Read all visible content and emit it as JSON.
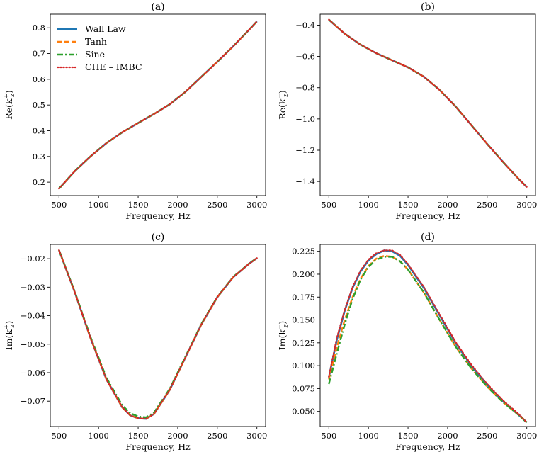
{
  "figure": {
    "legend_placement": "top-left"
  },
  "series_styles": [
    {
      "name": "Wall Law",
      "color": "#1f77b4",
      "dash": "solid"
    },
    {
      "name": "Tanh",
      "color": "#ff7f0e",
      "dash": "dashed"
    },
    {
      "name": "Sine",
      "color": "#2ca02c",
      "dash": "dashdot"
    },
    {
      "name": "CHE – IMBC",
      "color": "#d62728",
      "dash": "dotted"
    }
  ],
  "chart_data": [
    {
      "type": "line",
      "title": "(a)",
      "xlabel": "Frequency, Hz",
      "ylabel": "Re(k",
      "ylabel_sup": "+",
      "ylabel_sub": "z",
      "xlim": [
        390,
        3110
      ],
      "ylim": [
        0.148,
        0.853
      ],
      "xticks": [
        500,
        1000,
        1500,
        2000,
        2500,
        3000
      ],
      "yticks": [
        0.2,
        0.3,
        0.4,
        0.5,
        0.6,
        0.7,
        0.8
      ],
      "ytick_labels": [
        "0.2",
        "0.3",
        "0.4",
        "0.5",
        "0.6",
        "0.7",
        "0.8"
      ],
      "show_legend": true,
      "x": [
        500,
        700,
        900,
        1100,
        1300,
        1500,
        1700,
        1900,
        2100,
        2300,
        2500,
        2700,
        2900,
        3000
      ],
      "series": [
        {
          "name": "Wall Law",
          "values": [
            0.175,
            0.243,
            0.301,
            0.352,
            0.394,
            0.43,
            0.465,
            0.503,
            0.552,
            0.61,
            0.668,
            0.728,
            0.792,
            0.825
          ]
        },
        {
          "name": "Tanh",
          "values": [
            0.175,
            0.243,
            0.301,
            0.352,
            0.394,
            0.43,
            0.465,
            0.503,
            0.552,
            0.61,
            0.668,
            0.728,
            0.792,
            0.825
          ]
        },
        {
          "name": "Sine",
          "values": [
            0.175,
            0.243,
            0.301,
            0.352,
            0.394,
            0.43,
            0.465,
            0.503,
            0.552,
            0.61,
            0.668,
            0.728,
            0.792,
            0.825
          ]
        },
        {
          "name": "CHE – IMBC",
          "values": [
            0.175,
            0.243,
            0.301,
            0.352,
            0.394,
            0.43,
            0.465,
            0.503,
            0.552,
            0.61,
            0.668,
            0.728,
            0.792,
            0.825
          ]
        }
      ]
    },
    {
      "type": "line",
      "title": "(b)",
      "xlabel": "Frequency, Hz",
      "ylabel": "Re(k",
      "ylabel_sup": "−",
      "ylabel_sub": "z",
      "xlim": [
        390,
        3110
      ],
      "ylim": [
        -1.49,
        -0.33
      ],
      "xticks": [
        500,
        1000,
        1500,
        2000,
        2500,
        3000
      ],
      "yticks": [
        -1.4,
        -1.2,
        -1.0,
        -0.8,
        -0.6,
        -0.4
      ],
      "ytick_labels": [
        "−1.4",
        "−1.2",
        "−1.0",
        "−0.8",
        "−0.6",
        "−0.4"
      ],
      "show_legend": false,
      "x": [
        500,
        700,
        900,
        1100,
        1300,
        1500,
        1700,
        1900,
        2100,
        2300,
        2500,
        2700,
        2900,
        3000
      ],
      "series": [
        {
          "name": "Wall Law",
          "values": [
            -0.365,
            -0.455,
            -0.525,
            -0.58,
            -0.625,
            -0.67,
            -0.73,
            -0.815,
            -0.92,
            -1.04,
            -1.16,
            -1.275,
            -1.385,
            -1.435
          ]
        },
        {
          "name": "Tanh",
          "values": [
            -0.365,
            -0.455,
            -0.525,
            -0.58,
            -0.625,
            -0.67,
            -0.73,
            -0.815,
            -0.92,
            -1.04,
            -1.16,
            -1.275,
            -1.385,
            -1.435
          ]
        },
        {
          "name": "Sine",
          "values": [
            -0.365,
            -0.455,
            -0.525,
            -0.58,
            -0.625,
            -0.67,
            -0.73,
            -0.815,
            -0.92,
            -1.04,
            -1.16,
            -1.275,
            -1.385,
            -1.435
          ]
        },
        {
          "name": "CHE – IMBC",
          "values": [
            -0.365,
            -0.455,
            -0.525,
            -0.58,
            -0.625,
            -0.67,
            -0.73,
            -0.815,
            -0.92,
            -1.04,
            -1.16,
            -1.275,
            -1.385,
            -1.435
          ]
        }
      ]
    },
    {
      "type": "line",
      "title": "(c)",
      "xlabel": "Frequency, Hz",
      "ylabel": "Im(k",
      "ylabel_sup": "+",
      "ylabel_sub": "z",
      "xlim": [
        390,
        3110
      ],
      "ylim": [
        -0.0789,
        -0.015
      ],
      "xticks": [
        500,
        1000,
        1500,
        2000,
        2500,
        3000
      ],
      "yticks": [
        -0.07,
        -0.06,
        -0.05,
        -0.04,
        -0.03,
        -0.02
      ],
      "ytick_labels": [
        "−0.07",
        "−0.06",
        "−0.05",
        "−0.04",
        "−0.03",
        "−0.02"
      ],
      "show_legend": false,
      "x": [
        500,
        700,
        900,
        1100,
        1300,
        1400,
        1500,
        1600,
        1700,
        1900,
        2100,
        2300,
        2500,
        2700,
        2900,
        3000
      ],
      "series": [
        {
          "name": "Wall Law",
          "values": [
            -0.017,
            -0.0318,
            -0.048,
            -0.0624,
            -0.0722,
            -0.075,
            -0.076,
            -0.0762,
            -0.0745,
            -0.066,
            -0.0545,
            -0.043,
            -0.0335,
            -0.0265,
            -0.0218,
            -0.0198
          ]
        },
        {
          "name": "Tanh",
          "values": [
            -0.017,
            -0.0318,
            -0.048,
            -0.0624,
            -0.0722,
            -0.075,
            -0.076,
            -0.0762,
            -0.0745,
            -0.066,
            -0.0545,
            -0.043,
            -0.0335,
            -0.0265,
            -0.0218,
            -0.0198
          ]
        },
        {
          "name": "Sine",
          "values": [
            -0.017,
            -0.0316,
            -0.0476,
            -0.0618,
            -0.0715,
            -0.0742,
            -0.0754,
            -0.0757,
            -0.074,
            -0.0656,
            -0.0542,
            -0.0428,
            -0.0334,
            -0.0264,
            -0.0217,
            -0.0198
          ]
        },
        {
          "name": "CHE – IMBC",
          "values": [
            -0.017,
            -0.0318,
            -0.048,
            -0.0624,
            -0.0722,
            -0.075,
            -0.076,
            -0.0762,
            -0.0745,
            -0.066,
            -0.0545,
            -0.043,
            -0.0335,
            -0.0265,
            -0.0218,
            -0.0198
          ]
        }
      ]
    },
    {
      "type": "line",
      "title": "(d)",
      "xlabel": "Frequency, Hz",
      "ylabel": "Im(k",
      "ylabel_sup": "−",
      "ylabel_sub": "z",
      "xlim": [
        390,
        3110
      ],
      "ylim": [
        0.0335,
        0.2325
      ],
      "xticks": [
        500,
        1000,
        1500,
        2000,
        2500,
        3000
      ],
      "yticks": [
        0.05,
        0.075,
        0.1,
        0.125,
        0.15,
        0.175,
        0.2,
        0.225
      ],
      "ytick_labels": [
        "0.050",
        "0.075",
        "0.100",
        "0.125",
        "0.150",
        "0.175",
        "0.200",
        "0.225"
      ],
      "show_legend": false,
      "x": [
        500,
        600,
        700,
        800,
        900,
        1000,
        1100,
        1200,
        1300,
        1400,
        1500,
        1700,
        1900,
        2100,
        2300,
        2500,
        2700,
        2900,
        3000
      ],
      "series": [
        {
          "name": "Wall Law",
          "values": [
            0.087,
            0.128,
            0.16,
            0.185,
            0.203,
            0.215,
            0.222,
            0.226,
            0.225,
            0.22,
            0.21,
            0.185,
            0.155,
            0.125,
            0.1,
            0.079,
            0.061,
            0.046,
            0.038
          ]
        },
        {
          "name": "Tanh",
          "values": [
            0.085,
            0.12,
            0.15,
            0.175,
            0.195,
            0.209,
            0.217,
            0.22,
            0.219,
            0.214,
            0.205,
            0.18,
            0.15,
            0.121,
            0.097,
            0.077,
            0.06,
            0.046,
            0.038
          ]
        },
        {
          "name": "Sine",
          "values": [
            0.08,
            0.113,
            0.145,
            0.173,
            0.194,
            0.208,
            0.216,
            0.219,
            0.219,
            0.214,
            0.205,
            0.18,
            0.15,
            0.121,
            0.097,
            0.077,
            0.06,
            0.046,
            0.038
          ]
        },
        {
          "name": "CHE – IMBC",
          "values": [
            0.088,
            0.13,
            0.161,
            0.186,
            0.204,
            0.216,
            0.223,
            0.226,
            0.226,
            0.221,
            0.211,
            0.186,
            0.156,
            0.126,
            0.101,
            0.08,
            0.062,
            0.047,
            0.038
          ]
        }
      ]
    }
  ]
}
